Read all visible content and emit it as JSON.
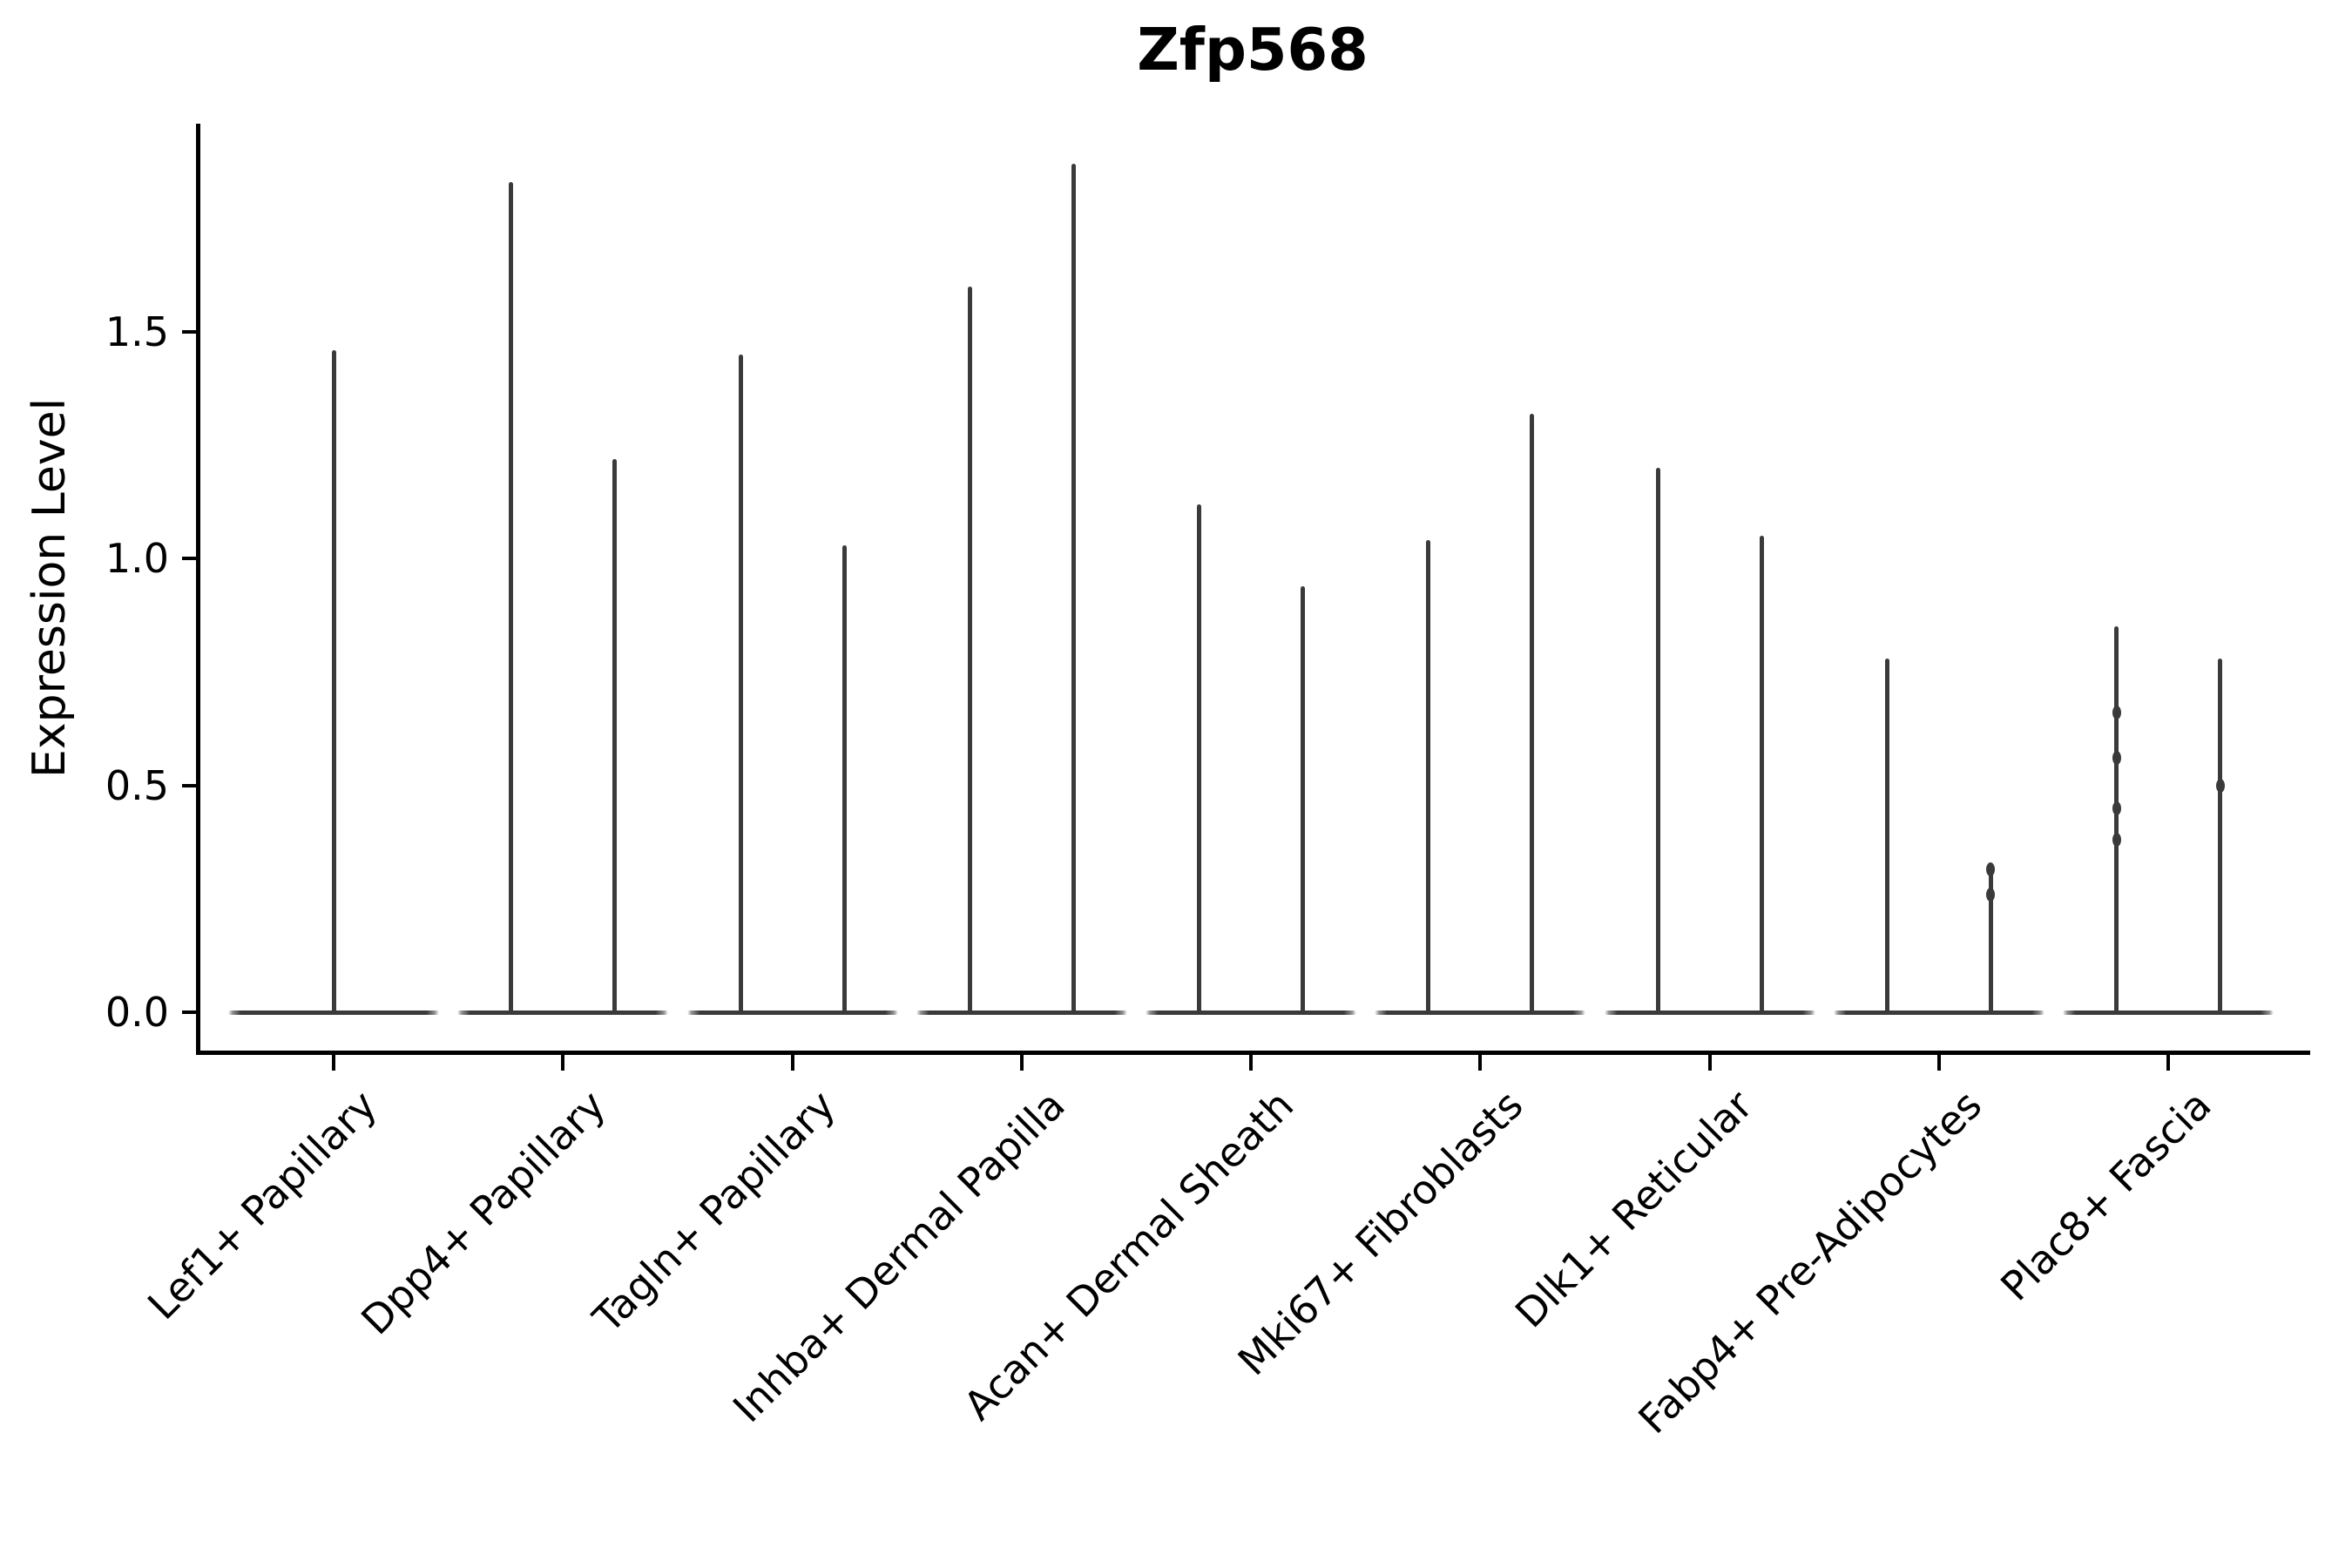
{
  "chart_data": {
    "type": "violin",
    "title": "Zfp568",
    "ylabel": "Expression Level",
    "xlabel": "",
    "yticks": [
      "0.0",
      "0.5",
      "1.0",
      "1.5"
    ],
    "ytick_values": [
      0.0,
      0.5,
      1.0,
      1.5
    ],
    "ylim": [
      -0.09,
      1.96
    ],
    "grid": false,
    "legend_position": "none",
    "categories": [
      "Lef1+ Papillary",
      "Dpp4+ Papillary",
      "Tagln+ Papillary",
      "Inhba+ Dermal Papilla",
      "Acan+ Dermal Sheath",
      "Mki67+ Fibroblasts",
      "Dlk1+ Reticular",
      "Fabp4+ Pre-Adipocytes",
      "Plac8+ Fascia"
    ],
    "baseline_value": 0,
    "violins": [
      {
        "category": "Lef1+ Papillary",
        "maxima": [
          1.46
        ],
        "knots": [
          []
        ]
      },
      {
        "category": "Dpp4+ Papillary",
        "maxima": [
          1.83,
          1.22
        ],
        "knots": [
          [],
          []
        ]
      },
      {
        "category": "Tagln+ Papillary",
        "maxima": [
          1.45,
          1.03
        ],
        "knots": [
          [],
          []
        ]
      },
      {
        "category": "Inhba+ Dermal Papilla",
        "maxima": [
          1.6,
          1.87
        ],
        "knots": [
          [],
          []
        ]
      },
      {
        "category": "Acan+ Dermal Sheath",
        "maxima": [
          1.12,
          0.94
        ],
        "knots": [
          [],
          []
        ]
      },
      {
        "category": "Mki67+ Fibroblasts",
        "maxima": [
          1.04,
          1.32
        ],
        "knots": [
          [],
          []
        ]
      },
      {
        "category": "Dlk1+ Reticular",
        "maxima": [
          1.2,
          1.05
        ],
        "knots": [
          [],
          []
        ]
      },
      {
        "category": "Fabp4+ Pre-Adipocytes",
        "maxima": [
          0.78,
          0.32
        ],
        "knots": [
          [],
          [
            0.315,
            0.26
          ]
        ]
      },
      {
        "category": "Plac8+ Fascia",
        "maxima": [
          0.85,
          0.78
        ],
        "knots": [
          [
            0.66,
            0.56,
            0.45,
            0.38
          ],
          [
            0.5
          ]
        ]
      }
    ],
    "colors": {
      "violin_stroke": "#3a3a3a",
      "axis": "#000000",
      "background": "#ffffff"
    }
  }
}
